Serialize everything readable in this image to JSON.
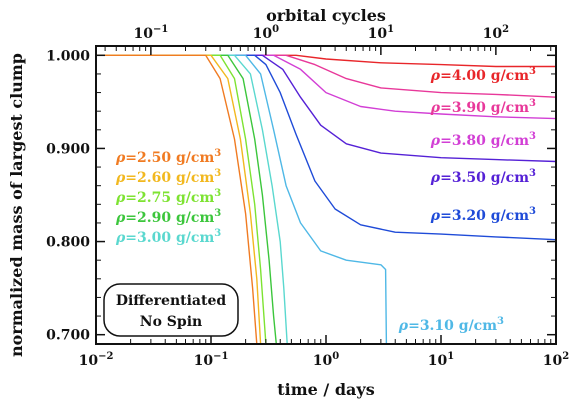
{
  "chart_data": {
    "type": "line",
    "xlabel": "time / days",
    "x2label": "orbital cycles",
    "ylabel": "normalized mass of largest clump",
    "xscale": "log",
    "xlim": [
      0.01,
      100
    ],
    "ylim": [
      0.69,
      1.01
    ],
    "grid": false,
    "x_ticks": [
      {
        "value": 0.01,
        "base": "10",
        "exp": "−2"
      },
      {
        "value": 0.1,
        "base": "10",
        "exp": "−1"
      },
      {
        "value": 1,
        "base": "10",
        "exp": "0"
      },
      {
        "value": 10,
        "base": "10",
        "exp": "1"
      },
      {
        "value": 100,
        "base": "10",
        "exp": "2"
      }
    ],
    "x2_ticks": [
      {
        "cycles": 0.1,
        "base": "10",
        "exp": "−1"
      },
      {
        "cycles": 1,
        "base": "10",
        "exp": "0"
      },
      {
        "cycles": 10,
        "base": "10",
        "exp": "1"
      },
      {
        "cycles": 100,
        "base": "10",
        "exp": "2"
      }
    ],
    "y_ticks": [
      "0.700",
      "0.800",
      "0.900",
      "1.000"
    ],
    "annotation_box": [
      "Differentiated",
      "No Spin"
    ],
    "label_prefix": "ρ=",
    "label_unit": " g/cm",
    "label_sup": "3",
    "series": [
      {
        "rho": "4.00",
        "color": "#e8262a",
        "points": [
          [
            0.01,
            1.0
          ],
          [
            0.55,
            1.0
          ],
          [
            1.0,
            0.996
          ],
          [
            3,
            0.992
          ],
          [
            10,
            0.99
          ],
          [
            30,
            0.988
          ],
          [
            100,
            0.988
          ]
        ]
      },
      {
        "rho": "3.90",
        "color": "#e8389a",
        "points": [
          [
            0.01,
            1.0
          ],
          [
            0.45,
            1.0
          ],
          [
            0.8,
            0.99
          ],
          [
            1.5,
            0.975
          ],
          [
            3,
            0.965
          ],
          [
            10,
            0.96
          ],
          [
            30,
            0.958
          ],
          [
            100,
            0.955
          ]
        ]
      },
      {
        "rho": "3.80",
        "color": "#d23fd5",
        "points": [
          [
            0.01,
            1.0
          ],
          [
            0.35,
            1.0
          ],
          [
            0.6,
            0.985
          ],
          [
            1.0,
            0.96
          ],
          [
            2,
            0.945
          ],
          [
            4,
            0.94
          ],
          [
            10,
            0.937
          ],
          [
            30,
            0.934
          ],
          [
            100,
            0.932
          ]
        ]
      },
      {
        "rho": "3.50",
        "color": "#5521d6",
        "points": [
          [
            0.01,
            1.0
          ],
          [
            0.28,
            1.0
          ],
          [
            0.42,
            0.985
          ],
          [
            0.6,
            0.955
          ],
          [
            0.9,
            0.925
          ],
          [
            1.5,
            0.905
          ],
          [
            3,
            0.895
          ],
          [
            10,
            0.89
          ],
          [
            30,
            0.888
          ],
          [
            100,
            0.886
          ]
        ]
      },
      {
        "rho": "3.20",
        "color": "#1f4bd8",
        "points": [
          [
            0.01,
            1.0
          ],
          [
            0.24,
            1.0
          ],
          [
            0.3,
            0.99
          ],
          [
            0.4,
            0.96
          ],
          [
            0.55,
            0.915
          ],
          [
            0.8,
            0.865
          ],
          [
            1.2,
            0.835
          ],
          [
            2,
            0.818
          ],
          [
            4,
            0.81
          ],
          [
            10,
            0.808
          ],
          [
            30,
            0.805
          ],
          [
            100,
            0.802
          ]
        ]
      },
      {
        "rho": "3.10",
        "color": "#4fb8e6",
        "points": [
          [
            0.01,
            1.0
          ],
          [
            0.2,
            1.0
          ],
          [
            0.27,
            0.98
          ],
          [
            0.35,
            0.92
          ],
          [
            0.45,
            0.86
          ],
          [
            0.6,
            0.82
          ],
          [
            0.9,
            0.79
          ],
          [
            1.5,
            0.78
          ],
          [
            3.0,
            0.775
          ],
          [
            3.3,
            0.77
          ],
          [
            3.35,
            0.69
          ]
        ]
      },
      {
        "rho": "3.00",
        "color": "#5ad8cf",
        "points": [
          [
            0.01,
            1.0
          ],
          [
            0.16,
            1.0
          ],
          [
            0.22,
            0.98
          ],
          [
            0.28,
            0.92
          ],
          [
            0.34,
            0.86
          ],
          [
            0.4,
            0.8
          ],
          [
            0.43,
            0.75
          ],
          [
            0.46,
            0.69
          ]
        ]
      },
      {
        "rho": "2.90",
        "color": "#3cc63c",
        "points": [
          [
            0.01,
            1.0
          ],
          [
            0.14,
            1.0
          ],
          [
            0.19,
            0.975
          ],
          [
            0.24,
            0.91
          ],
          [
            0.28,
            0.85
          ],
          [
            0.32,
            0.78
          ],
          [
            0.35,
            0.72
          ],
          [
            0.37,
            0.69
          ]
        ]
      },
      {
        "rho": "2.75",
        "color": "#7ee332",
        "points": [
          [
            0.01,
            1.0
          ],
          [
            0.12,
            1.0
          ],
          [
            0.16,
            0.975
          ],
          [
            0.2,
            0.91
          ],
          [
            0.24,
            0.84
          ],
          [
            0.27,
            0.77
          ],
          [
            0.3,
            0.69
          ]
        ]
      },
      {
        "rho": "2.60",
        "color": "#f2b81f",
        "points": [
          [
            0.01,
            1.0
          ],
          [
            0.1,
            1.0
          ],
          [
            0.14,
            0.975
          ],
          [
            0.18,
            0.91
          ],
          [
            0.22,
            0.83
          ],
          [
            0.25,
            0.76
          ],
          [
            0.27,
            0.69
          ]
        ]
      },
      {
        "rho": "2.50",
        "color": "#f07b22",
        "points": [
          [
            0.01,
            1.0
          ],
          [
            0.09,
            1.0
          ],
          [
            0.12,
            0.975
          ],
          [
            0.16,
            0.91
          ],
          [
            0.2,
            0.83
          ],
          [
            0.23,
            0.75
          ],
          [
            0.25,
            0.69
          ]
        ]
      }
    ]
  }
}
